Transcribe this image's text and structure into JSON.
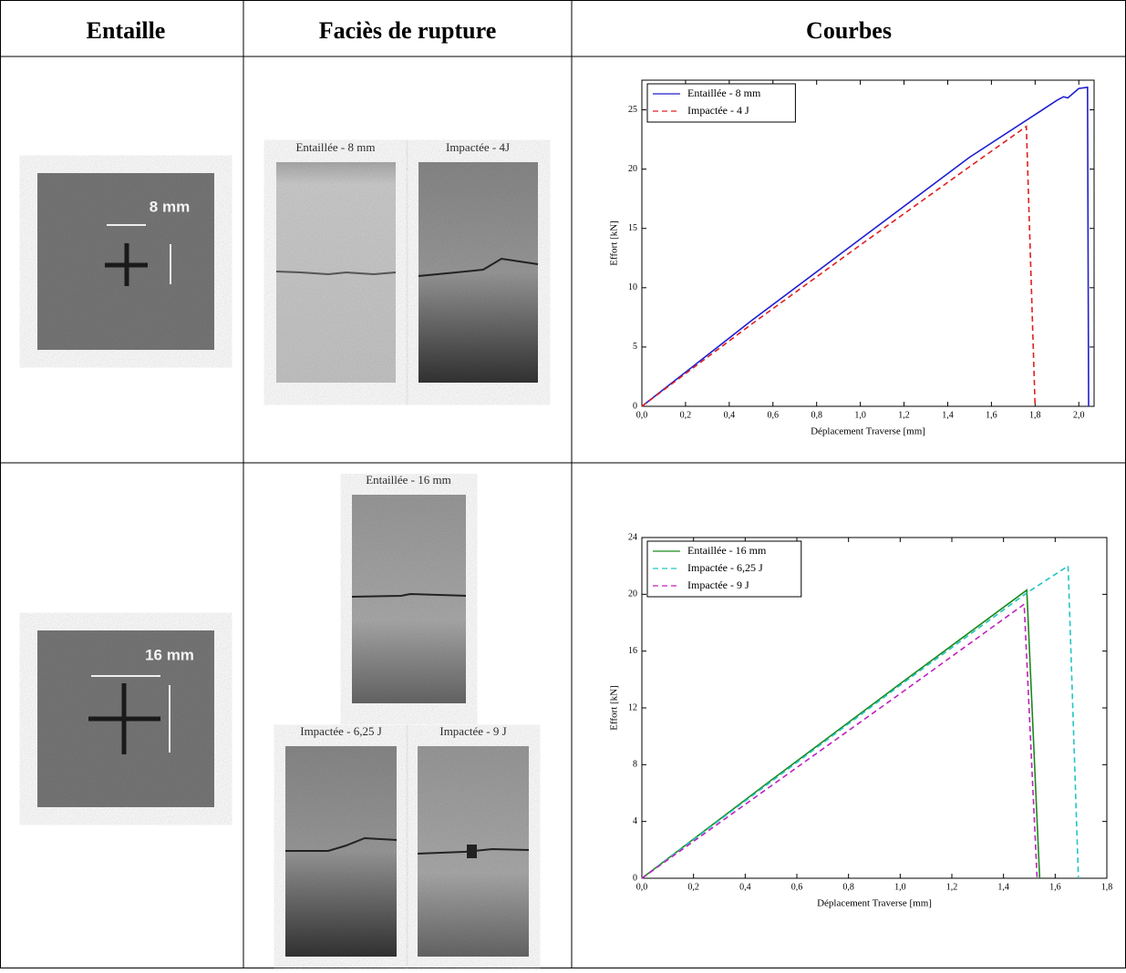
{
  "table": {
    "headers": [
      "Entaille",
      "Faciès de rupture",
      "Courbes"
    ],
    "rows": [
      {
        "notch_label": "8 mm",
        "captions": [
          "Entaillée - 8 mm",
          "Impactée - 4J"
        ]
      },
      {
        "notch_label": "16 mm",
        "captions": [
          "Entaillée - 16 mm",
          "Impactée - 6,25 J",
          "Impactée - 9 J"
        ]
      }
    ]
  },
  "chart_data": [
    {
      "type": "line",
      "xlabel": "Déplacement Traverse [mm]",
      "ylabel": "Effort [kN]",
      "xlim": [
        0,
        2.07
      ],
      "ylim": [
        0,
        27.5
      ],
      "xticks": [
        {
          "value": 0,
          "label": "0,0"
        },
        {
          "value": 0.2,
          "label": "0,2"
        },
        {
          "value": 0.4,
          "label": "0,4"
        },
        {
          "value": 0.6,
          "label": "0,6"
        },
        {
          "value": 0.8,
          "label": "0,8"
        },
        {
          "value": 1.0,
          "label": "1,0"
        },
        {
          "value": 1.2,
          "label": "1,2"
        },
        {
          "value": 1.4,
          "label": "1,4"
        },
        {
          "value": 1.6,
          "label": "1,6"
        },
        {
          "value": 1.8,
          "label": "1,8"
        },
        {
          "value": 2.0,
          "label": "2,0"
        }
      ],
      "yticks": [
        0,
        5,
        10,
        15,
        20,
        25
      ],
      "legend": "upper left",
      "series": [
        {
          "name": "Entaillée - 8 mm",
          "color": "#1f1fd0",
          "dash": "solid",
          "x": [
            0,
            0.5,
            1.0,
            1.5,
            1.8,
            1.9,
            1.93,
            1.95,
            2.0,
            2.04,
            2.045
          ],
          "values": [
            0,
            7.2,
            14.1,
            21.0,
            24.6,
            25.8,
            26.1,
            26.0,
            26.8,
            26.9,
            0
          ]
        },
        {
          "name": "Impactée - 4 J",
          "color": "#e02020",
          "dash": "dashed",
          "x": [
            0,
            0.5,
            1.0,
            1.5,
            1.76,
            1.8
          ],
          "values": [
            0,
            6.9,
            13.6,
            20.2,
            23.6,
            0
          ]
        }
      ]
    },
    {
      "type": "line",
      "xlabel": "Déplacement Traverse [mm]",
      "ylabel": "Effort [kN]",
      "xlim": [
        0,
        1.8
      ],
      "ylim": [
        0,
        24
      ],
      "xticks": [
        {
          "value": 0,
          "label": "0,0"
        },
        {
          "value": 0.2,
          "label": "0,2"
        },
        {
          "value": 0.4,
          "label": "0,4"
        },
        {
          "value": 0.6,
          "label": "0,6"
        },
        {
          "value": 0.8,
          "label": "0,8"
        },
        {
          "value": 1.0,
          "label": "1,0"
        },
        {
          "value": 1.2,
          "label": "1,2"
        },
        {
          "value": 1.4,
          "label": "1,4"
        },
        {
          "value": 1.6,
          "label": "1,6"
        },
        {
          "value": 1.8,
          "label": "1,8"
        }
      ],
      "yticks": [
        0,
        4,
        8,
        12,
        16,
        20,
        24
      ],
      "legend": "upper left",
      "series": [
        {
          "name": "Entaillée - 16 mm",
          "color": "#1a8a1a",
          "dash": "solid",
          "x": [
            0,
            0.5,
            1.0,
            1.49,
            1.54
          ],
          "values": [
            0,
            6.9,
            13.7,
            20.3,
            0
          ]
        },
        {
          "name": "Impactée - 6,25 J",
          "color": "#22c4c4",
          "dash": "dashed",
          "x": [
            0,
            1.0,
            1.49,
            1.65,
            1.69
          ],
          "values": [
            0,
            13.6,
            20.1,
            22.0,
            0
          ]
        },
        {
          "name": "Impactée - 9 J",
          "color": "#c020c0",
          "dash": "dashed",
          "x": [
            0,
            1.0,
            1.48,
            1.53
          ],
          "values": [
            0,
            13.0,
            19.3,
            0
          ]
        }
      ]
    }
  ]
}
